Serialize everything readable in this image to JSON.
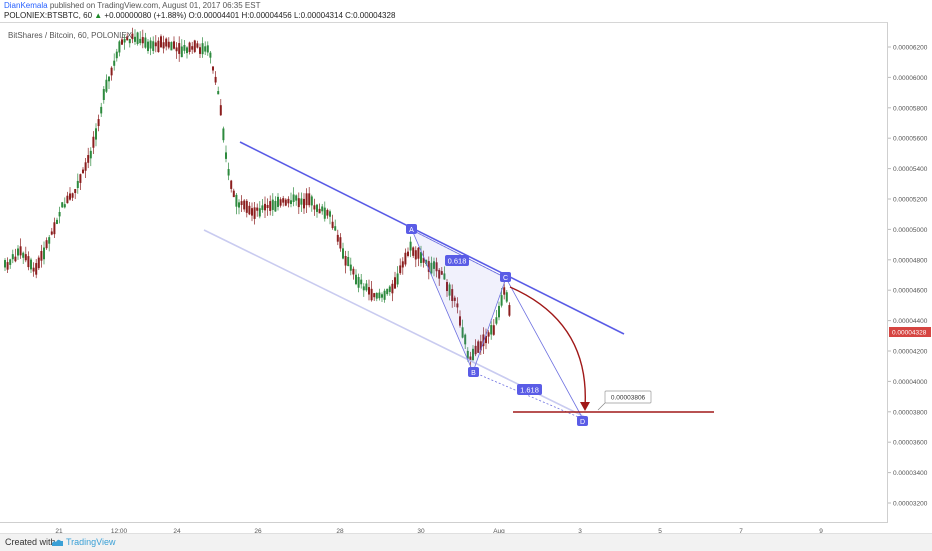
{
  "header": {
    "author": "DianKemala",
    "published": "published on TradingView.com, August 01, 2017 06:35 EST",
    "symbol_line": "POLONIEX:BTSBTC, 60",
    "change": "+0.00000080 (+1.88%)",
    "open": "O:0.00004401",
    "high": "H:0.00004456",
    "low": "L:0.00004314",
    "close": "C:0.00004328"
  },
  "chart_title": "BitShares / Bitcoin, 60, POLONIEX",
  "price_axis": {
    "ticks": [
      "0.00006200",
      "0.00006000",
      "0.00005800",
      "0.00005600",
      "0.00005400",
      "0.00005200",
      "0.00005000",
      "0.00004800",
      "0.00004600",
      "0.00004400",
      "0.00004200",
      "0.00004000",
      "0.00003800",
      "0.00003600",
      "0.00003400",
      "0.00003200"
    ],
    "current": "0.00004328",
    "current_color": "#d64541"
  },
  "time_axis": {
    "ticks": [
      "21",
      "12:00",
      "24",
      "26",
      "28",
      "30",
      "Aug",
      "3",
      "5",
      "7",
      "9"
    ]
  },
  "points": {
    "A": "A",
    "B": "B",
    "C": "C",
    "D": "D"
  },
  "fib_labels": {
    "upper": "0.618",
    "lower": "1.618"
  },
  "target_label": "0.00003806",
  "colors": {
    "up": "#2d8a3e",
    "down": "#8b1e1e",
    "channel": "#5a5ce6",
    "channel_light": "#c9cbf0",
    "target": "#a01818",
    "pattern": "#6c6fe0"
  },
  "footer": {
    "created_with": "Created with",
    "brand": "TradingView"
  }
}
